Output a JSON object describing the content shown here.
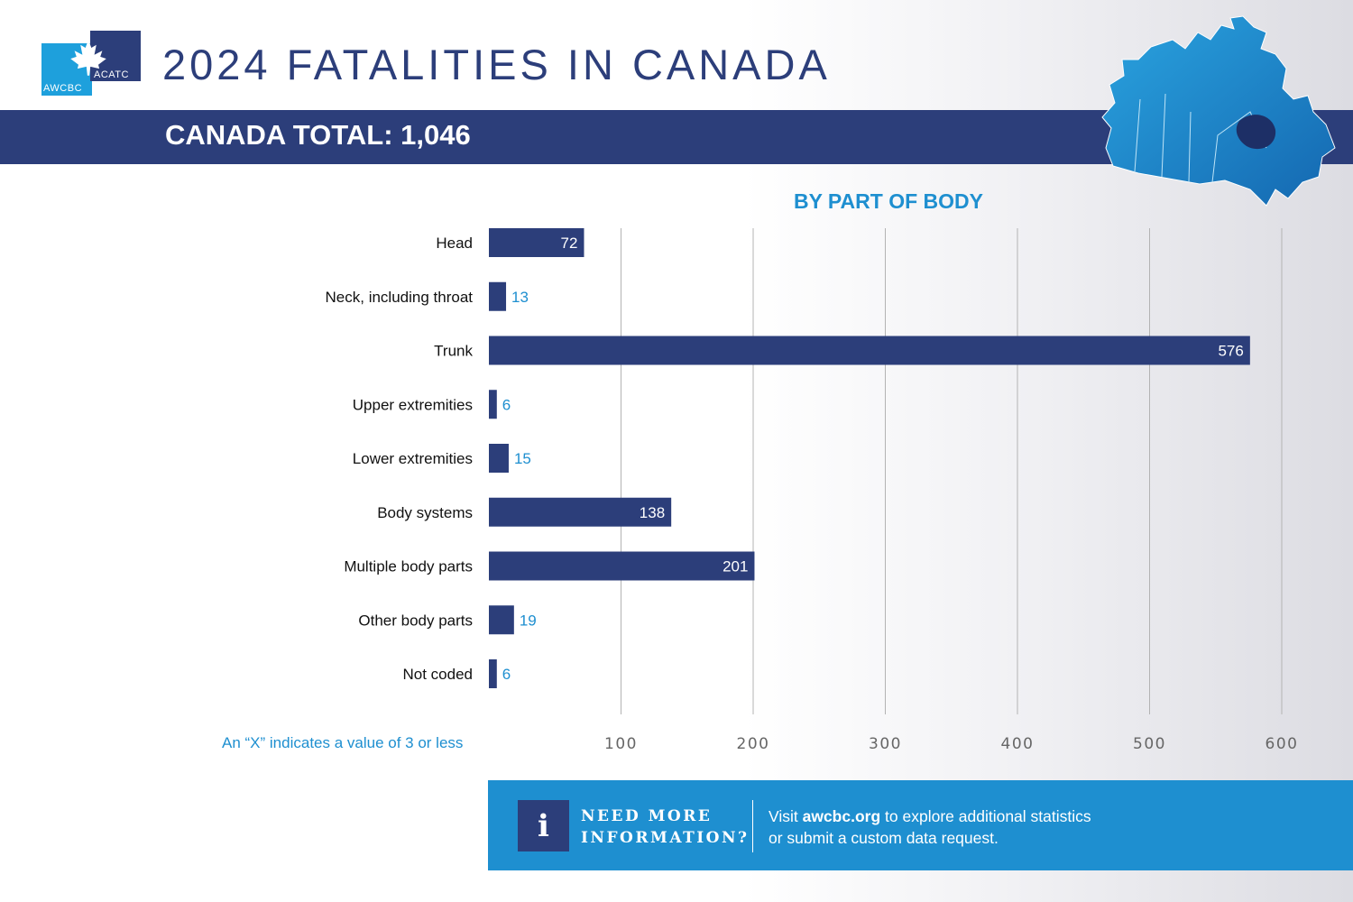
{
  "header": {
    "logo_left_text": "AWCBC",
    "logo_right_text": "ACATC",
    "title": "2024 FATALITIES IN CANADA",
    "total_label": "CANADA TOTAL: 1,046"
  },
  "colors": {
    "navy": "#2c3e7a",
    "accent_blue": "#1e8fd0",
    "bar": "#2c3e7a"
  },
  "icons": {
    "map": "canada-map-icon",
    "info": "info-icon",
    "logo": "maple-leaf-icon"
  },
  "chart_data": {
    "type": "bar",
    "orientation": "horizontal",
    "title": "BY PART OF BODY",
    "categories": [
      "Head",
      "Neck, including throat",
      "Trunk",
      "Upper extremities",
      "Lower extremities",
      "Body systems",
      "Multiple body parts",
      "Other body parts",
      "Not coded"
    ],
    "values": [
      72,
      13,
      576,
      6,
      15,
      138,
      201,
      19,
      6
    ],
    "xlim": [
      0,
      600
    ],
    "xticks": [
      100,
      200,
      300,
      400,
      500,
      600
    ],
    "grid": true,
    "legend": "none"
  },
  "note": "An “X” indicates a value of 3 or less",
  "info": {
    "icon_letter": "i",
    "heading_line1": "NEED MORE",
    "heading_line2": "INFORMATION?",
    "body_prefix": "Visit ",
    "body_link": "awcbc.org",
    "body_suffix": " to explore additional statistics",
    "body_line2": "or submit a custom data request."
  }
}
